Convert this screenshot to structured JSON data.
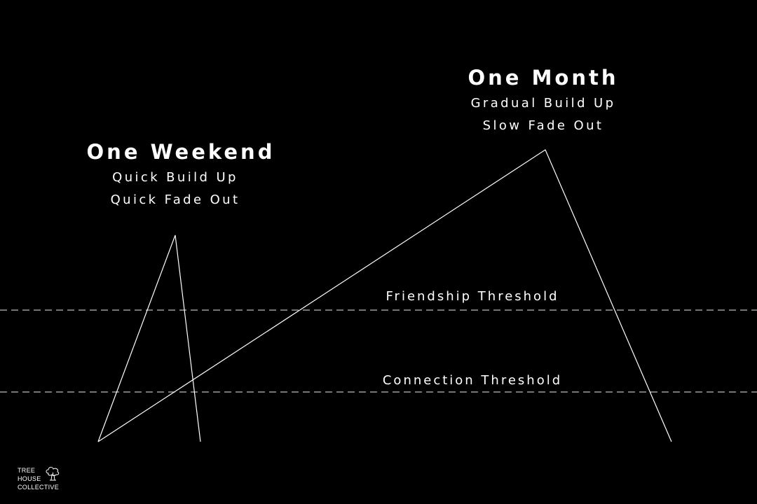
{
  "peaks": {
    "weekend": {
      "title": "One Weekend",
      "line1": "Quick Build Up",
      "line2": "Quick Fade Out"
    },
    "month": {
      "title": "One Month",
      "line1": "Gradual Build Up",
      "line2": "Slow Fade Out"
    }
  },
  "thresholds": {
    "friendship": "Friendship Threshold",
    "connection": "Connection Threshold"
  },
  "logo": {
    "line1": "TREE",
    "line2": "HOUSE",
    "line3": "COLLECTIVE",
    "icon": "tree-icon"
  },
  "colors": {
    "background": "#000000",
    "foreground": "#ffffff",
    "dash": "#bbbbbb"
  }
}
